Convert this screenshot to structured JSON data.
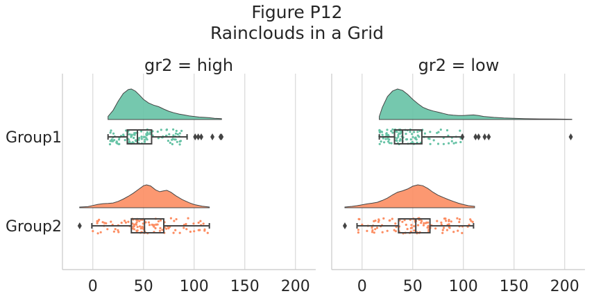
{
  "figure": {
    "title_line1": "Figure P12",
    "title_line2": "Rainclouds in a Grid"
  },
  "chart_data": {
    "type": "raincloud",
    "facet_titles": [
      "gr2 = high",
      "gr2 = low"
    ],
    "categories": [
      "Group1",
      "Group2"
    ],
    "x_ticks": [
      0,
      50,
      100,
      150,
      200
    ],
    "xlim": [
      -30,
      220
    ],
    "grid": "vertical",
    "colors": {
      "Group1": "#66c2a5",
      "Group2": "#fc8d62",
      "outline": "#444444"
    },
    "panels": [
      {
        "title": "gr2 = high",
        "groups": [
          {
            "name": "Group1",
            "density_range": [
              15,
              127
            ],
            "density": [
              [
                15,
                0.1
              ],
              [
                20,
                0.3
              ],
              [
                25,
                0.6
              ],
              [
                30,
                0.85
              ],
              [
                35,
                0.98
              ],
              [
                38,
                1.0
              ],
              [
                42,
                0.93
              ],
              [
                46,
                0.8
              ],
              [
                50,
                0.66
              ],
              [
                55,
                0.54
              ],
              [
                60,
                0.47
              ],
              [
                65,
                0.42
              ],
              [
                70,
                0.34
              ],
              [
                75,
                0.27
              ],
              [
                80,
                0.22
              ],
              [
                85,
                0.18
              ],
              [
                90,
                0.15
              ],
              [
                95,
                0.12
              ],
              [
                100,
                0.1
              ],
              [
                105,
                0.08
              ],
              [
                110,
                0.07
              ],
              [
                115,
                0.06
              ],
              [
                120,
                0.04
              ],
              [
                127,
                0.03
              ]
            ],
            "box": {
              "whisker_low": 15,
              "q1": 34,
              "median": 44,
              "q3": 58,
              "whisker_high": 93
            },
            "outliers": [
              101,
              104,
              107,
              118,
              126,
              127
            ]
          },
          {
            "name": "Group2",
            "density_range": [
              -13,
              115
            ],
            "density": [
              [
                -13,
                0.03
              ],
              [
                -5,
                0.05
              ],
              [
                0,
                0.1
              ],
              [
                5,
                0.15
              ],
              [
                10,
                0.18
              ],
              [
                15,
                0.19
              ],
              [
                20,
                0.21
              ],
              [
                25,
                0.28
              ],
              [
                30,
                0.38
              ],
              [
                35,
                0.5
              ],
              [
                40,
                0.64
              ],
              [
                45,
                0.8
              ],
              [
                50,
                0.96
              ],
              [
                53,
                1.0
              ],
              [
                57,
                0.95
              ],
              [
                62,
                0.78
              ],
              [
                66,
                0.7
              ],
              [
                70,
                0.74
              ],
              [
                73,
                0.76
              ],
              [
                77,
                0.68
              ],
              [
                82,
                0.52
              ],
              [
                88,
                0.36
              ],
              [
                95,
                0.22
              ],
              [
                100,
                0.14
              ],
              [
                108,
                0.07
              ],
              [
                115,
                0.03
              ]
            ],
            "box": {
              "whisker_low": -1,
              "q1": 38,
              "median": 51,
              "q3": 70,
              "whisker_high": 115
            },
            "outliers": [
              -13
            ]
          }
        ]
      },
      {
        "title": "gr2 = low",
        "groups": [
          {
            "name": "Group1",
            "density_range": [
              17,
              207
            ],
            "density": [
              [
                17,
                0.1
              ],
              [
                20,
                0.4
              ],
              [
                25,
                0.75
              ],
              [
                30,
                0.93
              ],
              [
                35,
                1.0
              ],
              [
                40,
                0.95
              ],
              [
                45,
                0.82
              ],
              [
                50,
                0.66
              ],
              [
                55,
                0.52
              ],
              [
                60,
                0.4
              ],
              [
                65,
                0.33
              ],
              [
                70,
                0.28
              ],
              [
                75,
                0.24
              ],
              [
                80,
                0.2
              ],
              [
                85,
                0.16
              ],
              [
                90,
                0.14
              ],
              [
                95,
                0.13
              ],
              [
                100,
                0.13
              ],
              [
                105,
                0.14
              ],
              [
                110,
                0.15
              ],
              [
                115,
                0.13
              ],
              [
                120,
                0.1
              ],
              [
                130,
                0.07
              ],
              [
                140,
                0.05
              ],
              [
                150,
                0.04
              ],
              [
                160,
                0.03
              ],
              [
                175,
                0.02
              ],
              [
                190,
                0.015
              ],
              [
                207,
                0.01
              ]
            ],
            "box": {
              "whisker_low": 17,
              "q1": 32,
              "median": 40,
              "q3": 59,
              "whisker_high": 99
            },
            "outliers": [
              99,
              112,
              115,
              121,
              125,
              206
            ]
          },
          {
            "name": "Group2",
            "density_range": [
              -17,
              111
            ],
            "density": [
              [
                -17,
                0.03
              ],
              [
                -10,
                0.06
              ],
              [
                -5,
                0.09
              ],
              [
                0,
                0.13
              ],
              [
                5,
                0.17
              ],
              [
                10,
                0.2
              ],
              [
                15,
                0.24
              ],
              [
                20,
                0.32
              ],
              [
                25,
                0.42
              ],
              [
                30,
                0.56
              ],
              [
                35,
                0.68
              ],
              [
                40,
                0.74
              ],
              [
                45,
                0.82
              ],
              [
                50,
                0.94
              ],
              [
                55,
                1.0
              ],
              [
                60,
                0.96
              ],
              [
                65,
                0.84
              ],
              [
                70,
                0.68
              ],
              [
                75,
                0.55
              ],
              [
                80,
                0.45
              ],
              [
                85,
                0.36
              ],
              [
                90,
                0.28
              ],
              [
                95,
                0.2
              ],
              [
                100,
                0.14
              ],
              [
                105,
                0.09
              ],
              [
                111,
                0.06
              ]
            ],
            "box": {
              "whisker_low": -5,
              "q1": 36,
              "median": 53,
              "q3": 67,
              "whisker_high": 110
            },
            "outliers": [
              -17
            ]
          }
        ]
      }
    ]
  }
}
